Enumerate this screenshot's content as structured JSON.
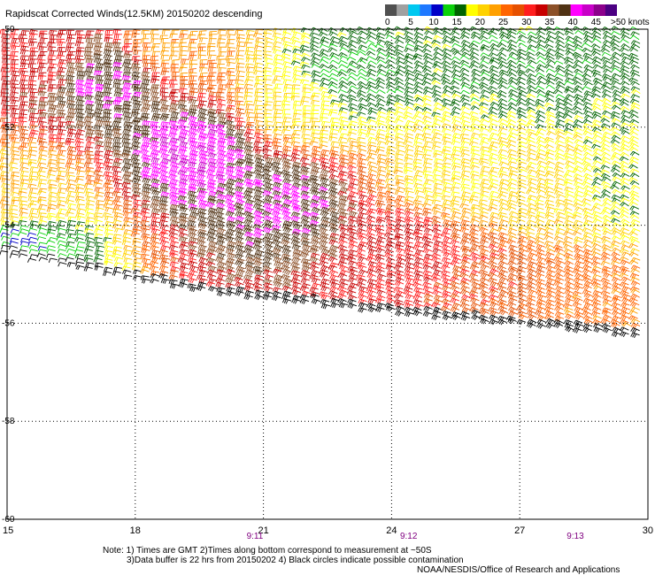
{
  "chart_data": {
    "type": "scatter",
    "title": "Rapidscat Corrected Winds(12.5KM) 20150202 descending",
    "x_ticks": [
      "15",
      "18",
      "21",
      "24",
      "27",
      "30"
    ],
    "y_ticks": [
      "-50",
      "-52",
      "-54",
      "-56",
      "-58",
      "-60"
    ],
    "xlim": [
      15,
      30
    ],
    "ylim": [
      -60,
      -50
    ],
    "grid": true,
    "time_labels": [
      {
        "x": 20.8,
        "text": "9:11"
      },
      {
        "x": 24.4,
        "text": "9:12"
      },
      {
        "x": 28.3,
        "text": "9:13"
      }
    ],
    "colorbar": {
      "unit_label": ">50 knots",
      "tick_labels": [
        "0",
        "5",
        "10",
        "15",
        "20",
        "25",
        "30",
        "35",
        "40",
        "45"
      ],
      "bins": [
        {
          "from": 0,
          "to": 2.5,
          "color": "#505050"
        },
        {
          "from": 2.5,
          "to": 5,
          "color": "#a0a0a0"
        },
        {
          "from": 5,
          "to": 7.5,
          "color": "#00c8f0"
        },
        {
          "from": 7.5,
          "to": 10,
          "color": "#1e78ff"
        },
        {
          "from": 10,
          "to": 12.5,
          "color": "#0000c8"
        },
        {
          "from": 12.5,
          "to": 15,
          "color": "#0ad20a"
        },
        {
          "from": 15,
          "to": 17.5,
          "color": "#006400"
        },
        {
          "from": 17.5,
          "to": 20,
          "color": "#ffff00"
        },
        {
          "from": 20,
          "to": 22.5,
          "color": "#ffd200"
        },
        {
          "from": 22.5,
          "to": 25,
          "color": "#ffa000"
        },
        {
          "from": 25,
          "to": 27.5,
          "color": "#ff6400"
        },
        {
          "from": 27.5,
          "to": 30,
          "color": "#e65000"
        },
        {
          "from": 30,
          "to": 32.5,
          "color": "#ff1e1e"
        },
        {
          "from": 32.5,
          "to": 35,
          "color": "#c80000"
        },
        {
          "from": 35,
          "to": 37.5,
          "color": "#8c5028"
        },
        {
          "from": 37.5,
          "to": 40,
          "color": "#503214"
        },
        {
          "from": 40,
          "to": 42.5,
          "color": "#ff00ff"
        },
        {
          "from": 42.5,
          "to": 45,
          "color": "#c800c8"
        },
        {
          "from": 45,
          "to": 47.5,
          "color": "#8c008c"
        },
        {
          "from": 47.5,
          "to": 50,
          "color": "#4b0082"
        }
      ]
    },
    "swath": {
      "north_edge_lat_at": [
        {
          "lon": 15,
          "lat": -50
        },
        {
          "lon": 30,
          "lat": -50
        }
      ],
      "south_edge_lat_at": [
        {
          "lon": 15,
          "lat": -54.6
        },
        {
          "lon": 20,
          "lat": -55.4
        },
        {
          "lon": 24,
          "lat": -55.8
        },
        {
          "lon": 30,
          "lat": -56.3
        }
      ]
    },
    "wind_field": [
      {
        "lon": 17.5,
        "lat": -51.0,
        "speed_kt": 40,
        "dir_deg": 280
      },
      {
        "lon": 19.5,
        "lat": -52.5,
        "speed_kt": 42,
        "dir_deg": 285
      },
      {
        "lon": 21.5,
        "lat": -53.5,
        "speed_kt": 40,
        "dir_deg": 290
      },
      {
        "lon": 16.0,
        "lat": -50.5,
        "speed_kt": 33,
        "dir_deg": 275
      },
      {
        "lon": 15.5,
        "lat": -53.5,
        "speed_kt": 22,
        "dir_deg": 280
      },
      {
        "lon": 19.0,
        "lat": -50.3,
        "speed_kt": 24,
        "dir_deg": 270
      },
      {
        "lon": 22.0,
        "lat": -51.5,
        "speed_kt": 20,
        "dir_deg": 275
      },
      {
        "lon": 24.5,
        "lat": -54.5,
        "speed_kt": 33,
        "dir_deg": 290
      },
      {
        "lon": 26.5,
        "lat": -55.0,
        "speed_kt": 29,
        "dir_deg": 295
      },
      {
        "lon": 28.5,
        "lat": -55.5,
        "speed_kt": 26,
        "dir_deg": 295
      },
      {
        "lon": 25.5,
        "lat": -53.0,
        "speed_kt": 20,
        "dir_deg": 285
      },
      {
        "lon": 27.5,
        "lat": -53.5,
        "speed_kt": 21,
        "dir_deg": 290
      },
      {
        "lon": 26.5,
        "lat": -50.8,
        "speed_kt": 16,
        "dir_deg": 300
      },
      {
        "lon": 28.5,
        "lat": -50.6,
        "speed_kt": 16,
        "dir_deg": 300
      },
      {
        "lon": 29.5,
        "lat": -53.2,
        "speed_kt": 18,
        "dir_deg": 300
      },
      {
        "lon": 15.5,
        "lat": -54.4,
        "speed_kt": 13,
        "dir_deg": 285
      },
      {
        "lon": 23.0,
        "lat": -51.0,
        "speed_kt": 15,
        "dir_deg": 300
      }
    ],
    "footnote": {
      "line1": "Note: 1) Times are GMT 2)Times along bottom correspond to measurement at ~50S",
      "line2": "3)Data buffer is 22 hrs from 20150202 4) Black circles indicate possible contamination",
      "credit": "NOAA/NESDIS/Office of Research and Applications"
    }
  }
}
